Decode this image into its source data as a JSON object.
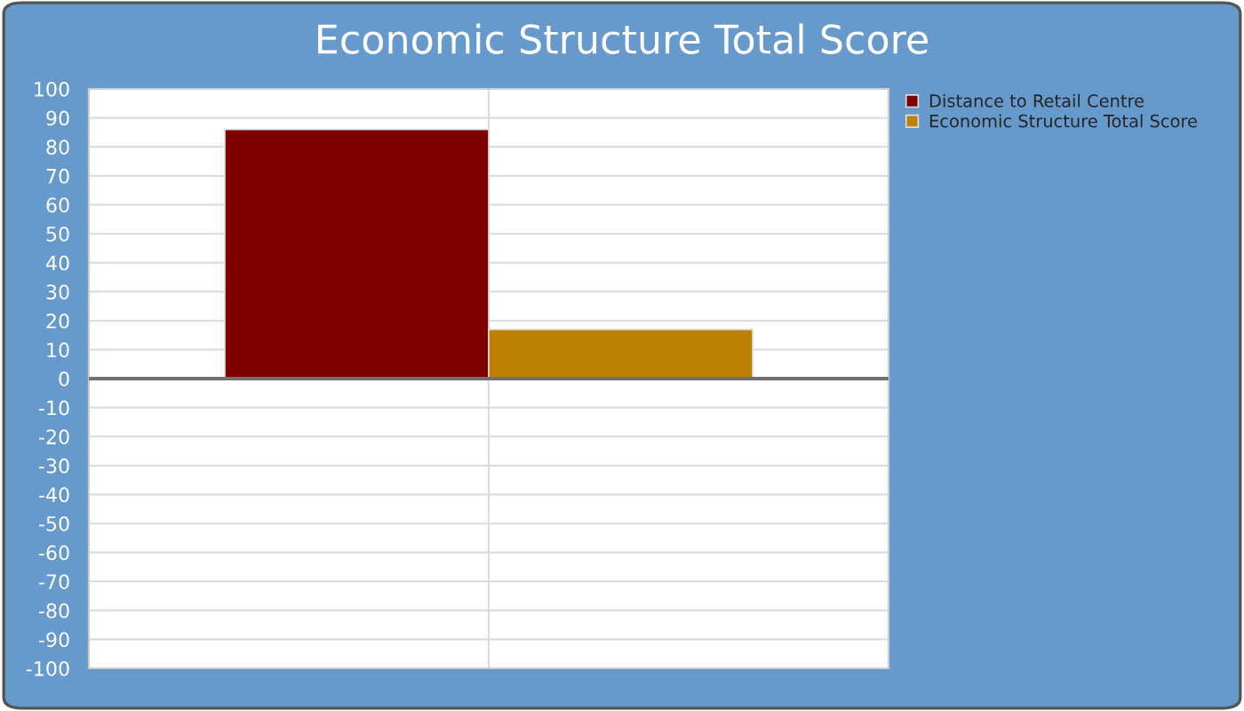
{
  "chart_data": {
    "type": "bar",
    "title": "Economic Structure Total Score",
    "categories": [
      null
    ],
    "series": [
      {
        "name": "Distance to Retail Centre",
        "color": "#800000",
        "values": [
          86
        ]
      },
      {
        "name": "Economic Structure Total Score",
        "color": "#bf8000",
        "values": [
          17
        ]
      }
    ],
    "ylim": [
      -100,
      100
    ],
    "yticks": [
      -100,
      -90,
      -80,
      -70,
      -60,
      -50,
      -40,
      -30,
      -20,
      -10,
      0,
      10,
      20,
      30,
      40,
      50,
      60,
      70,
      80,
      90,
      100
    ],
    "grid": true,
    "legend": "top right"
  }
}
